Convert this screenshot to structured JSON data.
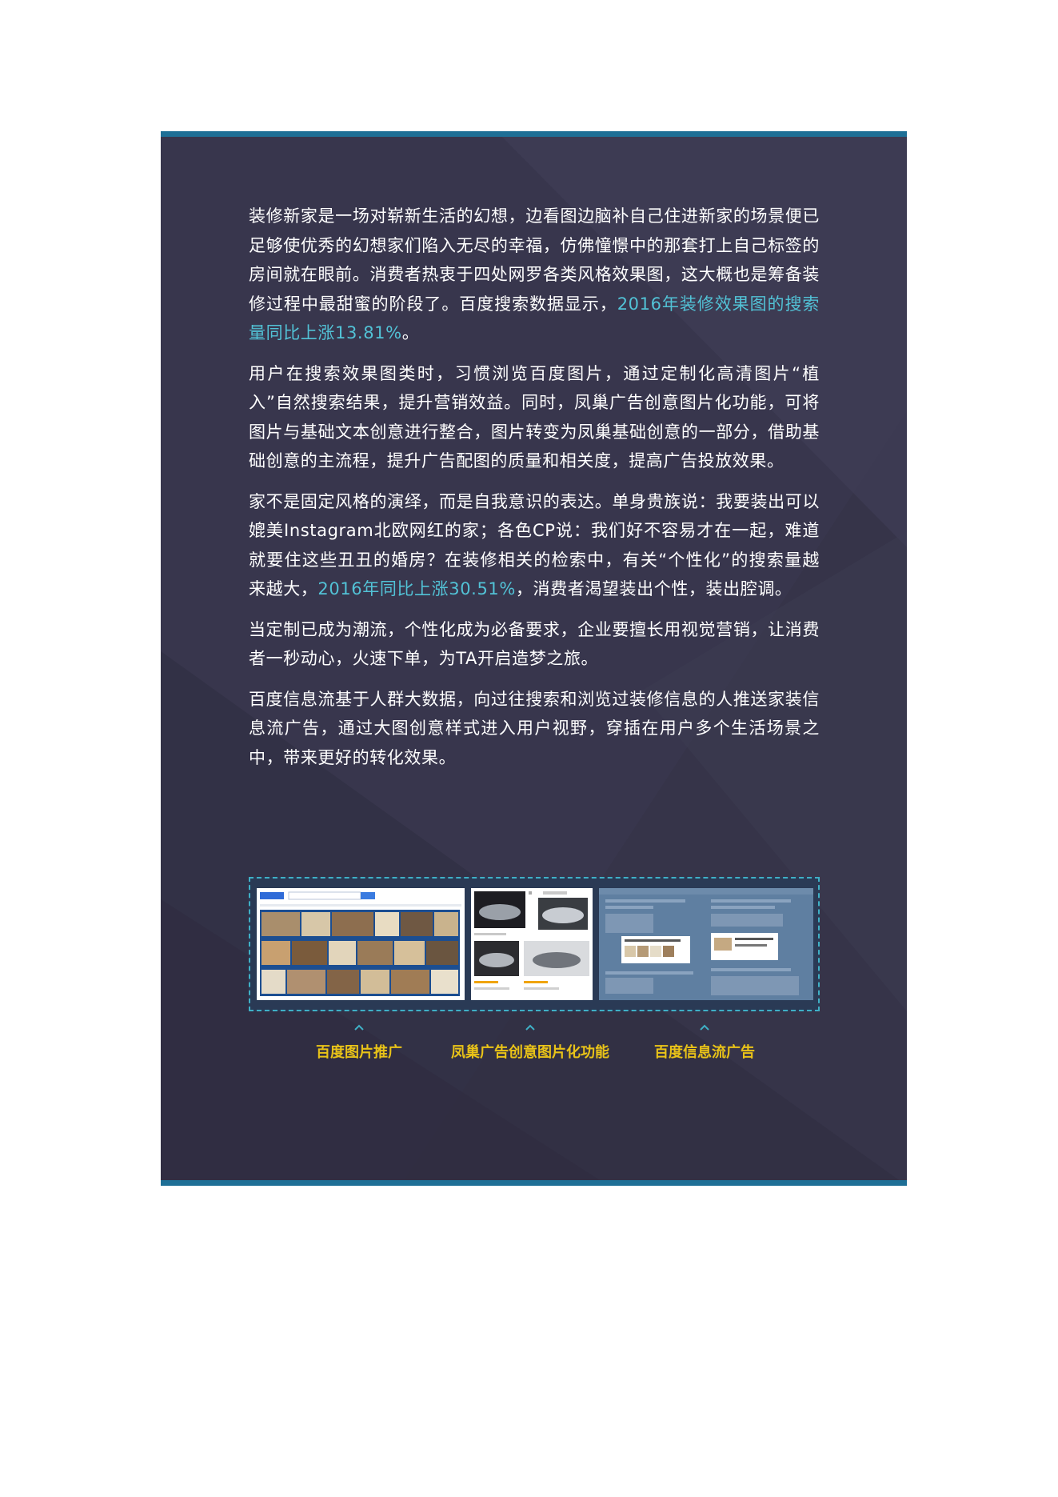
{
  "paragraphs": [
    {
      "text": "装修新家是一场对崭新生活的幻想，边看图边脑补自己住进新家的场景便已足够使优秀的幻想家们陷入无尽的幸福，仿佛憧憬中的那套打上自己标签的房间就在眼前。消费者热衷于四处网罗各类风格效果图，这大概也是筹备装修过程中最甜蜜的阶段了。百度搜索数据显示，",
      "highlight": "2016年装修效果图的搜索量同比上涨13.81%",
      "after": "。"
    },
    {
      "text": "用户在搜索效果图类时，习惯浏览百度图片，通过定制化高清图片“植入”自然搜索结果，提升营销效益。同时，凤巢广告创意图片化功能，可将图片与基础文本创意进行整合，图片转变为凤巢基础创意的一部分，借助基础创意的主流程，提升广告配图的质量和相关度，提高广告投放效果。",
      "highlight": "",
      "after": ""
    },
    {
      "text": "家不是固定风格的演绎，而是自我意识的表达。单身贵族说：我要装出可以媲美Instagram北欧网红的家；各色CP说：我们好不容易才在一起，难道就要住这些丑丑的婚房？在装修相关的检索中，有关“个性化”的搜索量越来越大，",
      "highlight": "2016年同比上涨30.51%",
      "after": "，消费者渴望装出个性，装出腔调。"
    },
    {
      "text": "当定制已成为潮流，个性化成为必备要求，企业要擅长用视觉营销，让消费者一秒动心，火速下单，为TA开启造梦之旅。",
      "highlight": "",
      "after": ""
    },
    {
      "text": "百度信息流基于人群大数据，向过往搜索和浏览过装修信息的人推送家装信息流广告，通过大图创意样式进入用户视野，穿插在用户多个生活场景之中，带来更好的转化效果。",
      "highlight": "",
      "after": ""
    }
  ],
  "captions": [
    "百度图片推广",
    "凤巢广告创意图片化功能",
    "百度信息流广告"
  ],
  "colors": {
    "panel": "#363449",
    "accent_bar": "#1e6f96",
    "highlight": "#52c2d6",
    "caption": "#e9c318"
  }
}
